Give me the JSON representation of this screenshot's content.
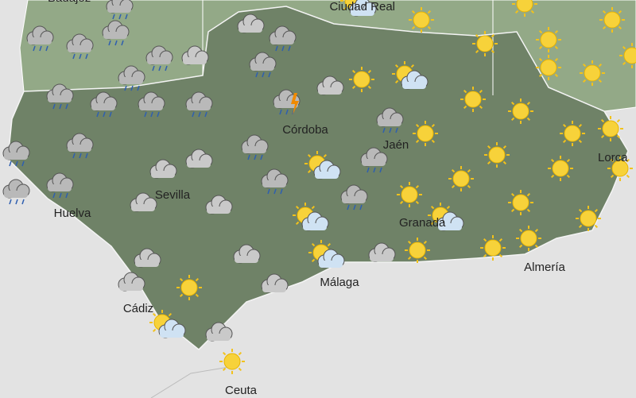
{
  "cities": [
    {
      "name": "Badajoz"
    },
    {
      "name": "Ciudad Real"
    },
    {
      "name": "Córdoba"
    },
    {
      "name": "Jaén"
    },
    {
      "name": "Sevilla"
    },
    {
      "name": "Huelva"
    },
    {
      "name": "Granada"
    },
    {
      "name": "Almería"
    },
    {
      "name": "Málaga"
    },
    {
      "name": "Cádiz"
    },
    {
      "name": "Ceuta"
    },
    {
      "name": "Lorca"
    }
  ]
}
